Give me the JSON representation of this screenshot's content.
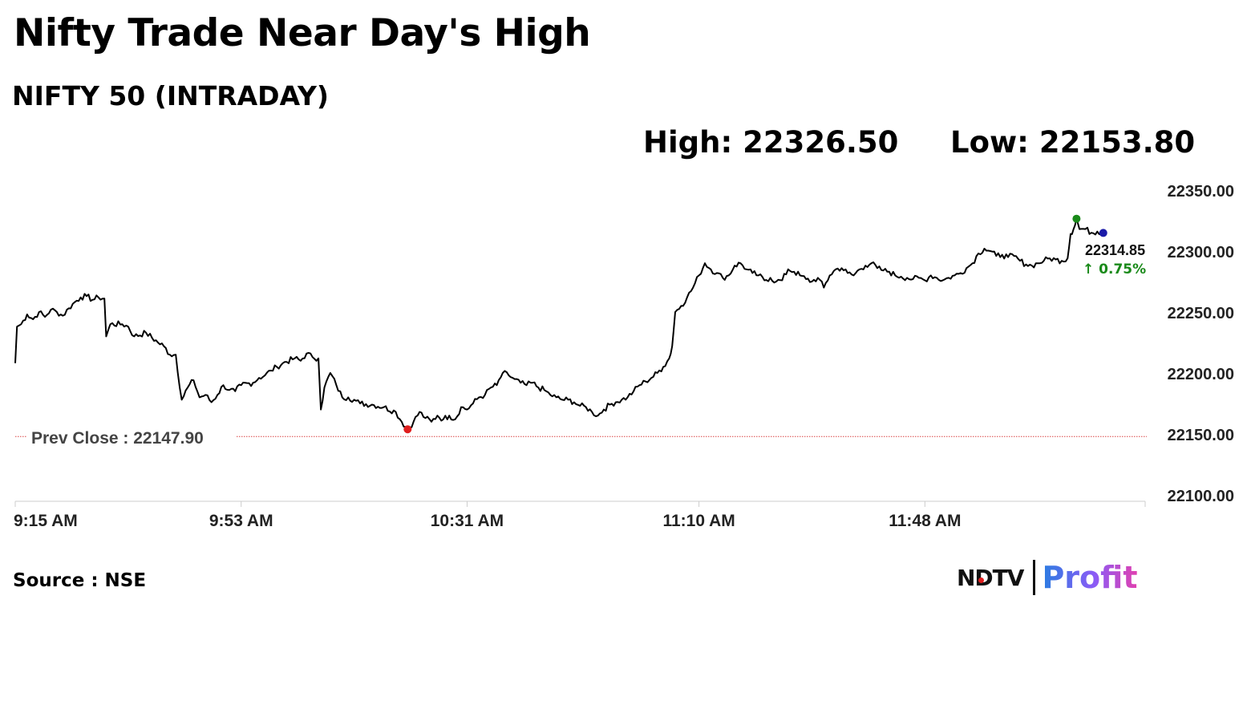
{
  "header": {
    "title": "Nifty Trade Near Day's High",
    "subtitle": "NIFTY 50 (INTRADAY)"
  },
  "stats": {
    "high_text": "High: 22326.50",
    "low_text": "Low: 22153.80"
  },
  "footer": {
    "source": "Source : NSE",
    "logo_ndtv": "NDTV",
    "logo_profit": "Profit"
  },
  "colors": {
    "line": "#000000",
    "high_marker": "#1a8a1a",
    "low_marker": "#e01e1e",
    "last_marker": "#1a1aa8",
    "prev_close_line": "#d94040",
    "change_positive": "#1a8a1a",
    "axis": "#cccccc"
  },
  "chart_data": {
    "type": "line",
    "title": "NIFTY 50 (INTRADAY)",
    "xlabel": "",
    "ylabel": "",
    "x_range": [
      "9:15 AM",
      "12:30 PM"
    ],
    "ylim": [
      22100,
      22350
    ],
    "y_ticks": [
      "22100.00",
      "22150.00",
      "22200.00",
      "22250.00",
      "22300.00",
      "22350.00"
    ],
    "x_ticks": [
      "9:15 AM",
      "9:53 AM",
      "10:31 AM",
      "11:10 AM",
      "11:48 AM"
    ],
    "x_tick_minutes": [
      0,
      38,
      76,
      115,
      153
    ],
    "series": [
      {
        "points": [
          [
            0,
            22208
          ],
          [
            0.3,
            22238
          ],
          [
            1,
            22240
          ],
          [
            2,
            22248
          ],
          [
            3,
            22244
          ],
          [
            4,
            22250
          ],
          [
            5,
            22246
          ],
          [
            6,
            22252
          ],
          [
            7,
            22250
          ],
          [
            8,
            22247
          ],
          [
            9,
            22253
          ],
          [
            10,
            22258
          ],
          [
            11,
            22262
          ],
          [
            12,
            22263
          ],
          [
            13,
            22260
          ],
          [
            14,
            22262
          ],
          [
            15,
            22261
          ],
          [
            15.3,
            22230
          ],
          [
            16,
            22240
          ],
          [
            18,
            22240
          ],
          [
            19,
            22238
          ],
          [
            20,
            22230
          ],
          [
            22,
            22233
          ],
          [
            24,
            22225
          ],
          [
            25,
            22222
          ],
          [
            26,
            22215
          ],
          [
            27,
            22215
          ],
          [
            28,
            22178
          ],
          [
            29,
            22188
          ],
          [
            30,
            22194
          ],
          [
            31,
            22180
          ],
          [
            32,
            22182
          ],
          [
            33,
            22176
          ],
          [
            34,
            22182
          ],
          [
            35,
            22190
          ],
          [
            36,
            22186
          ],
          [
            37,
            22185
          ],
          [
            38,
            22190
          ],
          [
            40,
            22192
          ],
          [
            41,
            22196
          ],
          [
            42,
            22198
          ],
          [
            43,
            22202
          ],
          [
            44,
            22205
          ],
          [
            45,
            22208
          ],
          [
            47,
            22212
          ],
          [
            48,
            22210
          ],
          [
            49,
            22216
          ],
          [
            50,
            22213
          ],
          [
            51,
            22212
          ],
          [
            51.4,
            22170
          ],
          [
            52,
            22188
          ],
          [
            53,
            22200
          ],
          [
            54,
            22190
          ],
          [
            55,
            22180
          ],
          [
            56,
            22180
          ],
          [
            57,
            22178
          ],
          [
            58,
            22175
          ],
          [
            60,
            22174
          ],
          [
            62,
            22172
          ],
          [
            64,
            22168
          ],
          [
            65,
            22160
          ],
          [
            66,
            22153.8
          ],
          [
            67,
            22160
          ],
          [
            68,
            22168
          ],
          [
            69,
            22163
          ],
          [
            70,
            22160
          ],
          [
            71,
            22165
          ],
          [
            72,
            22162
          ],
          [
            73,
            22165
          ],
          [
            74,
            22162
          ],
          [
            75,
            22172
          ],
          [
            76,
            22170
          ],
          [
            77,
            22175
          ],
          [
            78,
            22180
          ],
          [
            79,
            22182
          ],
          [
            80,
            22188
          ],
          [
            81,
            22190
          ],
          [
            82,
            22200
          ],
          [
            83,
            22198
          ],
          [
            84,
            22195
          ],
          [
            85,
            22192
          ],
          [
            86,
            22190
          ],
          [
            87,
            22192
          ],
          [
            88,
            22188
          ],
          [
            89,
            22186
          ],
          [
            90,
            22182
          ],
          [
            91,
            22180
          ],
          [
            92,
            22178
          ],
          [
            93,
            22178
          ],
          [
            94,
            22176
          ],
          [
            95,
            22173
          ],
          [
            96,
            22172
          ],
          [
            97,
            22168
          ],
          [
            98,
            22165
          ],
          [
            99,
            22170
          ],
          [
            100,
            22174
          ],
          [
            101,
            22176
          ],
          [
            102,
            22178
          ],
          [
            103,
            22180
          ],
          [
            104,
            22185
          ],
          [
            105,
            22190
          ],
          [
            106,
            22193
          ],
          [
            107,
            22196
          ],
          [
            108,
            22200
          ],
          [
            109,
            22205
          ],
          [
            110,
            22212
          ],
          [
            110.5,
            22222
          ],
          [
            111,
            22250
          ],
          [
            112,
            22255
          ],
          [
            113,
            22262
          ],
          [
            114,
            22270
          ],
          [
            115,
            22280
          ],
          [
            116,
            22290
          ],
          [
            117,
            22285
          ],
          [
            118,
            22282
          ],
          [
            119,
            22278
          ],
          [
            120,
            22280
          ],
          [
            121,
            22288
          ],
          [
            122,
            22290
          ],
          [
            123,
            22285
          ],
          [
            124,
            22282
          ],
          [
            125,
            22280
          ],
          [
            126,
            22276
          ],
          [
            127,
            22278
          ],
          [
            128,
            22275
          ],
          [
            129,
            22276
          ],
          [
            130,
            22285
          ],
          [
            131,
            22283
          ],
          [
            132,
            22280
          ],
          [
            133,
            22277
          ],
          [
            134,
            22275
          ],
          [
            135,
            22278
          ],
          [
            136,
            22270
          ],
          [
            137,
            22280
          ],
          [
            138,
            22285
          ],
          [
            139,
            22286
          ],
          [
            140,
            22282
          ],
          [
            141,
            22280
          ],
          [
            142,
            22285
          ],
          [
            143,
            22288
          ],
          [
            144,
            22290
          ],
          [
            145,
            22286
          ],
          [
            146,
            22284
          ],
          [
            147,
            22283
          ],
          [
            148,
            22280
          ],
          [
            149,
            22279
          ],
          [
            150,
            22278
          ],
          [
            151,
            22277
          ],
          [
            152,
            22278
          ],
          [
            153,
            22276
          ],
          [
            154,
            22280
          ],
          [
            155,
            22278
          ],
          [
            156,
            22276
          ],
          [
            157,
            22278
          ],
          [
            158,
            22280
          ],
          [
            159,
            22282
          ],
          [
            160,
            22286
          ],
          [
            161,
            22290
          ],
          [
            162,
            22298
          ],
          [
            163,
            22302
          ],
          [
            164,
            22300
          ],
          [
            165,
            22296
          ],
          [
            166,
            22297
          ],
          [
            167,
            22295
          ],
          [
            168,
            22296
          ],
          [
            169,
            22292
          ],
          [
            170,
            22289
          ],
          [
            171,
            22288
          ],
          [
            172,
            22290
          ],
          [
            173,
            22292
          ],
          [
            174,
            22294
          ],
          [
            175,
            22293
          ],
          [
            176,
            22292
          ],
          [
            177,
            22294
          ],
          [
            177.5,
            22314
          ],
          [
            178,
            22318
          ],
          [
            178.5,
            22326.5
          ],
          [
            179,
            22318
          ],
          [
            180,
            22318
          ],
          [
            181,
            22315
          ],
          [
            182,
            22316
          ],
          [
            183,
            22314.85
          ]
        ]
      }
    ],
    "prev_close": 22147.9,
    "prev_close_label": "Prev Close : 22147.90",
    "day_high": 22326.5,
    "day_low": 22153.8,
    "last_price": 22314.85,
    "last_price_label": "22314.85",
    "change_label": "0.75%",
    "change_arrow": "↑",
    "grid": false,
    "legend": "none"
  }
}
